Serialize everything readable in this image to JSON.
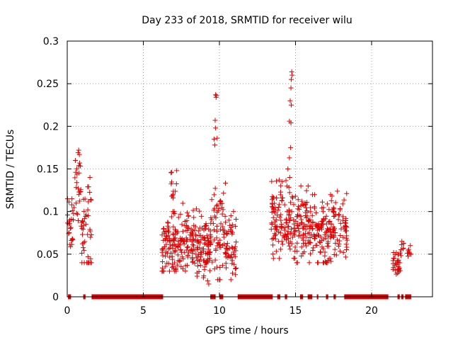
{
  "chart_data": {
    "type": "scatter",
    "title": "Day 233 of 2018, SRMTID for receiver wilu",
    "xlabel": "GPS time / hours",
    "ylabel": "SRMTID / TECUs",
    "xlim": [
      0,
      24
    ],
    "ylim": [
      0,
      0.3
    ],
    "xticks": [
      0,
      5,
      10,
      15,
      20
    ],
    "xtick_labels": [
      "0",
      "5",
      "10",
      "15",
      "20"
    ],
    "yticks": [
      0,
      0.05,
      0.1,
      0.15,
      0.2,
      0.25,
      0.3
    ],
    "ytick_labels": [
      "0",
      "0.05",
      "0.1",
      "0.15",
      "0.2",
      "0.25",
      "0.3"
    ],
    "grid": true,
    "marker": "plus",
    "color": "#e00000",
    "clusters": [
      {
        "x": [
          -0.1,
          0.5
        ],
        "y_mean": 0.085,
        "y_sd": 0.02,
        "y_min": 0.05,
        "y_max": 0.115,
        "n": 30
      },
      {
        "x": [
          0.5,
          0.9
        ],
        "y_mean": 0.135,
        "y_sd": 0.025,
        "y_min": 0.08,
        "y_max": 0.172,
        "n": 25
      },
      {
        "x": [
          0.9,
          1.6
        ],
        "y_mean": 0.075,
        "y_sd": 0.03,
        "y_min": 0.04,
        "y_max": 0.14,
        "n": 45
      },
      {
        "x": [
          6.2,
          7.6
        ],
        "y_mean": 0.06,
        "y_sd": 0.018,
        "y_min": 0.03,
        "y_max": 0.12,
        "n": 110
      },
      {
        "x": [
          6.8,
          7.2
        ],
        "y_mean": 0.125,
        "y_sd": 0.015,
        "y_min": 0.1,
        "y_max": 0.148,
        "n": 14
      },
      {
        "x": [
          7.6,
          9.4
        ],
        "y_mean": 0.06,
        "y_sd": 0.018,
        "y_min": 0.015,
        "y_max": 0.12,
        "n": 150
      },
      {
        "x": [
          9.4,
          10.4
        ],
        "y_mean": 0.07,
        "y_sd": 0.03,
        "y_min": 0.02,
        "y_max": 0.16,
        "n": 70
      },
      {
        "x": [
          10.4,
          11.1
        ],
        "y_mean": 0.06,
        "y_sd": 0.02,
        "y_min": 0.02,
        "y_max": 0.1,
        "n": 50
      },
      {
        "x": [
          13.4,
          14.6
        ],
        "y_mean": 0.09,
        "y_sd": 0.02,
        "y_min": 0.045,
        "y_max": 0.14,
        "n": 100
      },
      {
        "x": [
          14.6,
          16.2
        ],
        "y_mean": 0.085,
        "y_sd": 0.02,
        "y_min": 0.04,
        "y_max": 0.13,
        "n": 120
      },
      {
        "x": [
          16.2,
          17.2
        ],
        "y_mean": 0.075,
        "y_sd": 0.02,
        "y_min": 0.04,
        "y_max": 0.13,
        "n": 80
      },
      {
        "x": [
          17.2,
          18.4
        ],
        "y_mean": 0.08,
        "y_sd": 0.02,
        "y_min": 0.035,
        "y_max": 0.13,
        "n": 80
      },
      {
        "x": [
          21.4,
          21.9
        ],
        "y_mean": 0.042,
        "y_sd": 0.008,
        "y_min": 0.025,
        "y_max": 0.058,
        "n": 30
      },
      {
        "x": [
          21.9,
          22.1
        ],
        "y_mean": 0.055,
        "y_sd": 0.007,
        "y_min": 0.045,
        "y_max": 0.065,
        "n": 8
      },
      {
        "x": [
          22.3,
          22.6
        ],
        "y_mean": 0.052,
        "y_sd": 0.005,
        "y_min": 0.045,
        "y_max": 0.06,
        "n": 8
      }
    ],
    "outliers": [
      {
        "x": 9.75,
        "y": 0.237
      },
      {
        "x": 9.78,
        "y": 0.234
      },
      {
        "x": 9.8,
        "y": 0.236
      },
      {
        "x": 9.72,
        "y": 0.207
      },
      {
        "x": 9.75,
        "y": 0.198
      },
      {
        "x": 9.85,
        "y": 0.186
      },
      {
        "x": 9.7,
        "y": 0.178
      },
      {
        "x": 9.65,
        "y": 0.185
      },
      {
        "x": 14.75,
        "y": 0.264
      },
      {
        "x": 14.78,
        "y": 0.26
      },
      {
        "x": 14.72,
        "y": 0.255
      },
      {
        "x": 14.7,
        "y": 0.245
      },
      {
        "x": 14.65,
        "y": 0.23
      },
      {
        "x": 14.72,
        "y": 0.225
      },
      {
        "x": 14.6,
        "y": 0.206
      },
      {
        "x": 14.7,
        "y": 0.204
      },
      {
        "x": 14.68,
        "y": 0.175
      },
      {
        "x": 14.6,
        "y": 0.163
      },
      {
        "x": 14.5,
        "y": 0.15
      },
      {
        "x": 14.62,
        "y": 0.14
      }
    ],
    "zero_markers": [
      {
        "x": [
          0.05,
          0.25
        ]
      },
      {
        "x": [
          1.05,
          1.2
        ]
      },
      {
        "x": [
          1.6,
          6.3
        ]
      },
      {
        "x": [
          9.4,
          9.75
        ]
      },
      {
        "x": [
          10.0,
          10.25
        ]
      },
      {
        "x": [
          11.2,
          13.5
        ]
      },
      {
        "x": [
          13.8,
          14.0
        ]
      },
      {
        "x": [
          14.3,
          14.45
        ]
      },
      {
        "x": [
          15.3,
          15.5
        ]
      },
      {
        "x": [
          15.8,
          16.1
        ]
      },
      {
        "x": [
          16.4,
          16.5
        ]
      },
      {
        "x": [
          17.0,
          17.15
        ]
      },
      {
        "x": [
          17.5,
          17.65
        ]
      },
      {
        "x": [
          18.2,
          21.1
        ]
      },
      {
        "x": [
          21.7,
          21.85
        ]
      },
      {
        "x": [
          21.95,
          22.1
        ]
      },
      {
        "x": [
          22.2,
          22.6
        ]
      }
    ]
  }
}
